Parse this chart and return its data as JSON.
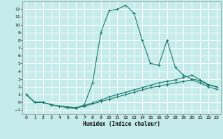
{
  "xlabel": "Humidex (Indice chaleur)",
  "background_color": "#c5ecea",
  "grid_color": "#ffffff",
  "line_color": "#1a7a6e",
  "xlim": [
    -0.5,
    23.5
  ],
  "ylim": [
    -1.5,
    13.0
  ],
  "xticks": [
    0,
    1,
    2,
    3,
    4,
    5,
    6,
    7,
    8,
    9,
    10,
    11,
    12,
    13,
    14,
    15,
    16,
    17,
    18,
    19,
    20,
    21,
    22,
    23
  ],
  "yticks": [
    -1,
    0,
    1,
    2,
    3,
    4,
    5,
    6,
    7,
    8,
    9,
    10,
    11,
    12
  ],
  "series": [
    {
      "x": [
        0,
        1,
        2,
        3,
        4,
        5,
        6,
        7,
        8,
        9,
        10,
        11,
        12,
        13,
        14,
        15,
        16,
        17,
        18,
        19,
        20,
        21,
        22,
        23
      ],
      "y": [
        1.0,
        0.0,
        0.0,
        -0.3,
        -0.5,
        -0.7,
        -0.8,
        -0.3,
        2.5,
        9.0,
        11.8,
        12.0,
        12.5,
        11.5,
        8.0,
        5.0,
        4.8,
        8.0,
        4.5,
        3.5,
        3.0,
        2.8,
        2.2,
        2.0
      ]
    },
    {
      "x": [
        0,
        1,
        2,
        3,
        4,
        5,
        6,
        7,
        8,
        9,
        10,
        11,
        12,
        13,
        14,
        15,
        16,
        17,
        18,
        19,
        20,
        21,
        22,
        23
      ],
      "y": [
        1.0,
        0.0,
        0.0,
        -0.3,
        -0.5,
        -0.6,
        -0.7,
        -0.4,
        -0.05,
        0.3,
        0.7,
        1.0,
        1.3,
        1.6,
        1.9,
        2.2,
        2.5,
        2.7,
        2.9,
        3.2,
        3.5,
        2.9,
        2.3,
        2.0
      ]
    },
    {
      "x": [
        0,
        1,
        2,
        3,
        4,
        5,
        6,
        7,
        8,
        9,
        10,
        11,
        12,
        13,
        14,
        15,
        16,
        17,
        18,
        19,
        20,
        21,
        22,
        23
      ],
      "y": [
        1.0,
        0.0,
        0.0,
        -0.3,
        -0.5,
        -0.6,
        -0.7,
        -0.5,
        -0.2,
        0.1,
        0.4,
        0.7,
        1.0,
        1.3,
        1.6,
        1.9,
        2.1,
        2.3,
        2.5,
        2.7,
        2.9,
        2.5,
        2.0,
        1.7
      ]
    }
  ]
}
